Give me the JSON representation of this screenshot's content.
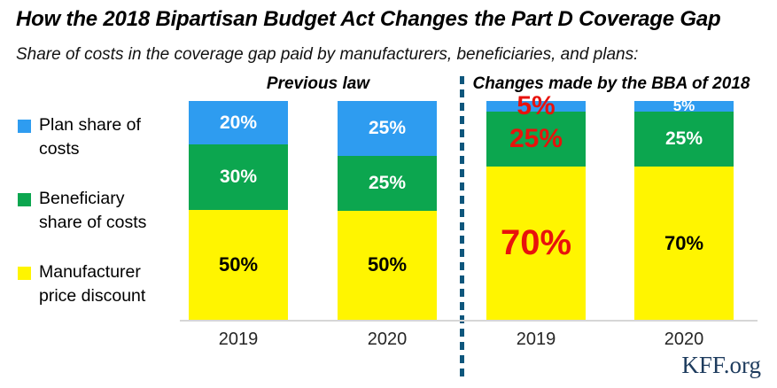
{
  "header": {
    "title": "How the 2018 Bipartisan Budget Act Changes the Part D Coverage Gap",
    "subtitle": "Share of costs in the coverage gap paid by manufacturers, beneficiaries, and plans:"
  },
  "panels": [
    {
      "label": "Previous law"
    },
    {
      "label": "Changes made by the BBA of 2018"
    }
  ],
  "legend": [
    {
      "line1": "Plan share of",
      "line2": "costs",
      "color": "#2e9cf0"
    },
    {
      "line1": "Beneficiary",
      "line2": "share of costs",
      "color": "#0ca64f"
    },
    {
      "line1": "Manufacturer",
      "line2": "price discount",
      "color": "#fff500"
    }
  ],
  "footer": {
    "brand": "KFF.org"
  },
  "colors": {
    "plan_blue": "#2e9cf0",
    "beneficiary_green": "#0ca64f",
    "manufacturer_yellow": "#fff500",
    "emphasis_red": "#e8120c",
    "divider_teal": "#0e567c",
    "axis_gray": "#d6d6d6",
    "brand_navy": "#1e3c5e"
  },
  "chart_data": {
    "type": "bar",
    "stacked": true,
    "unit": "%",
    "ylim": [
      0,
      100
    ],
    "grid": false,
    "legend_position": "left",
    "categories": [
      "2019",
      "2020",
      "2019",
      "2020"
    ],
    "series": [
      {
        "name": "Plan share of costs",
        "color": "#2e9cf0",
        "values": [
          20,
          25,
          5,
          5
        ]
      },
      {
        "name": "Beneficiary share of costs",
        "color": "#0ca64f",
        "values": [
          30,
          25,
          25,
          25
        ]
      },
      {
        "name": "Manufacturer price discount",
        "color": "#fff500",
        "values": [
          50,
          50,
          70,
          70
        ]
      }
    ],
    "bars": [
      {
        "category": "2019",
        "panel": "Previous law",
        "segments": [
          {
            "series": "Plan share of costs",
            "value": 20,
            "label": "20%",
            "label_style": "white"
          },
          {
            "series": "Beneficiary share of costs",
            "value": 30,
            "label": "30%",
            "label_style": "white"
          },
          {
            "series": "Manufacturer price discount",
            "value": 50,
            "label": "50%",
            "label_style": "black"
          }
        ]
      },
      {
        "category": "2020",
        "panel": "Previous law",
        "segments": [
          {
            "series": "Plan share of costs",
            "value": 25,
            "label": "25%",
            "label_style": "white"
          },
          {
            "series": "Beneficiary share of costs",
            "value": 25,
            "label": "25%",
            "label_style": "white"
          },
          {
            "series": "Manufacturer price discount",
            "value": 50,
            "label": "50%",
            "label_style": "black"
          }
        ]
      },
      {
        "category": "2019",
        "panel": "Changes made by the BBA of 2018",
        "segments": [
          {
            "series": "Plan share of costs",
            "value": 5,
            "label": "5%",
            "label_style": "red"
          },
          {
            "series": "Beneficiary share of costs",
            "value": 25,
            "label": "25%",
            "label_style": "red"
          },
          {
            "series": "Manufacturer price discount",
            "value": 70,
            "label": "70%",
            "label_style": "red-large"
          }
        ]
      },
      {
        "category": "2020",
        "panel": "Changes made by the BBA of 2018",
        "segments": [
          {
            "series": "Plan share of costs",
            "value": 5,
            "label": "5%",
            "label_style": "white-small"
          },
          {
            "series": "Beneficiary share of costs",
            "value": 25,
            "label": "25%",
            "label_style": "white"
          },
          {
            "series": "Manufacturer price discount",
            "value": 70,
            "label": "70%",
            "label_style": "black"
          }
        ]
      }
    ]
  }
}
